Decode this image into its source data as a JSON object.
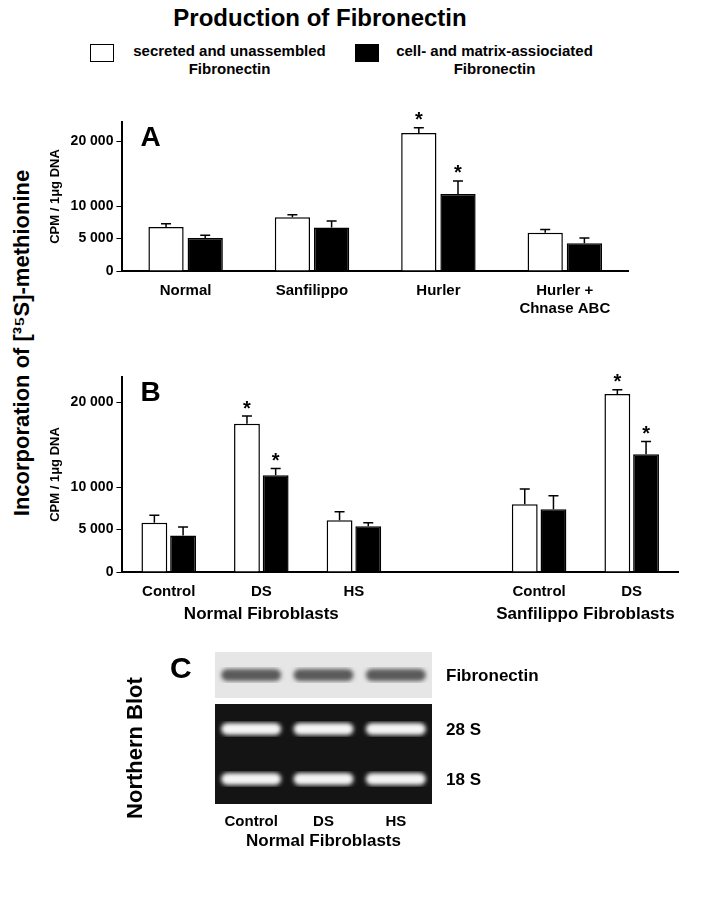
{
  "title": "Production of Fibronectin",
  "y_label": "Incorporation of [³⁵S]-methionine",
  "chart_data": [
    {
      "type": "bar",
      "panel": "A",
      "y_title": "CPM / 1μg DNA",
      "categories": [
        "Normal",
        "Sanfilippo",
        "Hurler",
        "Hurler + Chnase ABC"
      ],
      "series": [
        {
          "name": "secreted and unassembled Fibronectin",
          "color": "#ffffff",
          "values": [
            6800,
            8300,
            21300,
            5900
          ],
          "errors": [
            500,
            400,
            800,
            500
          ],
          "marks": [
            null,
            null,
            "*",
            null
          ]
        },
        {
          "name": "cell- and matrix-assiociated Fibronectin",
          "color": "#000000",
          "values": [
            5100,
            6700,
            11900,
            4300
          ],
          "errors": [
            400,
            1000,
            2000,
            800
          ],
          "marks": [
            null,
            null,
            "*",
            null
          ]
        }
      ],
      "ylim": [
        0,
        23000
      ],
      "yticks": [
        0,
        {
          "value": 5000,
          "label": "5 000"
        },
        {
          "value": 10000,
          "label": "10 000"
        },
        {
          "value": 20000,
          "label": "20 000"
        }
      ],
      "grid": false
    },
    {
      "type": "bar",
      "panel": "B",
      "y_title": "CPM / 1μg DNA",
      "categories": [
        "Control",
        "DS",
        "HS",
        null,
        "Control",
        "DS"
      ],
      "groups": [
        {
          "name": "Normal Fibroblasts",
          "members": [
            "Control",
            "DS",
            "HS"
          ]
        },
        {
          "name": "Sanfilippo Fibroblasts",
          "members": [
            "Control",
            "DS"
          ]
        }
      ],
      "series": [
        {
          "name": "secreted and unassembled Fibronectin",
          "color": "#ffffff",
          "values": [
            5800,
            17500,
            6100,
            null,
            8000,
            21000
          ],
          "errors": [
            900,
            900,
            1000,
            null,
            1800,
            500
          ],
          "marks": [
            null,
            "*",
            null,
            null,
            null,
            "*"
          ]
        },
        {
          "name": "cell- and matrix-assiociated Fibronectin",
          "color": "#000000",
          "values": [
            4300,
            11400,
            5400,
            null,
            7400,
            13900
          ],
          "errors": [
            1000,
            800,
            400,
            null,
            1600,
            1500
          ],
          "marks": [
            null,
            "*",
            null,
            null,
            null,
            "*"
          ]
        }
      ],
      "ylim": [
        0,
        23000
      ],
      "yticks": [
        0,
        {
          "value": 5000,
          "label": "5 000"
        },
        {
          "value": 10000,
          "label": "10 000"
        },
        {
          "value": 20000,
          "label": "20 000"
        }
      ],
      "grid": false
    }
  ],
  "blot": {
    "panel": "C",
    "title": "Northern Blot",
    "lanes": [
      "Control",
      "DS",
      "HS"
    ],
    "group": "Normal Fibroblasts",
    "panels": [
      {
        "bands": [
          "Fibronectin"
        ]
      },
      {
        "bands": [
          "28 S",
          "18 S"
        ]
      }
    ]
  }
}
